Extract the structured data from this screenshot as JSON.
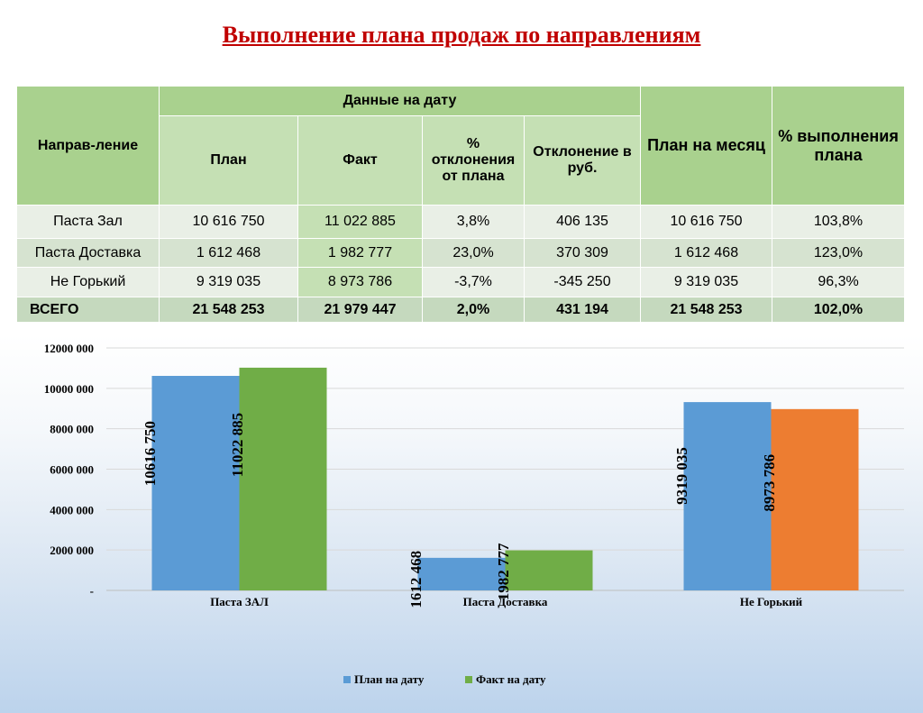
{
  "title": "Выполнение плана продаж по направлениям",
  "table": {
    "col_direction": "Направ-ление",
    "group_header": "Данные на дату",
    "col_plan": "План",
    "col_fact": "Факт",
    "col_pct_dev": "% отклонения от плана",
    "col_dev_rub": "Отклонение в руб.",
    "col_month_plan": "План на месяц",
    "col_pct_exec": "% выполнения плана",
    "rows": [
      {
        "name": "Паста Зал",
        "plan": "10 616 750",
        "fact": "11 022 885",
        "pct_dev": "3,8%",
        "dev_rub": "406 135",
        "month_plan": "10 616 750",
        "pct_exec": "103,8%"
      },
      {
        "name": "Паста Доставка",
        "plan": "1 612 468",
        "fact": "1 982 777",
        "pct_dev": "23,0%",
        "dev_rub": "370 309",
        "month_plan": "1 612 468",
        "pct_exec": "123,0%"
      },
      {
        "name": "Не Горький",
        "plan": "9 319 035",
        "fact": "8 973 786",
        "pct_dev": "-3,7%",
        "dev_rub": "-345 250",
        "month_plan": "9 319 035",
        "pct_exec": "96,3%"
      }
    ],
    "total": {
      "name": "ВСЕГО",
      "plan": "21 548 253",
      "fact": "21 979 447",
      "pct_dev": "2,0%",
      "dev_rub": "431 194",
      "month_plan": "21 548 253",
      "pct_exec": "102,0%"
    }
  },
  "chart_data": {
    "type": "bar",
    "categories": [
      "Паста  ЗАЛ",
      "Паста Доставка",
      "Не Горький"
    ],
    "series": [
      {
        "name": "План на дату",
        "values": [
          10616750,
          1612468,
          9319035
        ],
        "labels": [
          "10616 750",
          "1612 468",
          "9319 035"
        ],
        "colors": [
          "#5b9bd5",
          "#5b9bd5",
          "#5b9bd5"
        ]
      },
      {
        "name": "Факт на дату",
        "values": [
          11022885,
          1982777,
          8973786
        ],
        "labels": [
          "11022 885",
          "1982 777",
          "8973 786"
        ],
        "colors": [
          "#70ad47",
          "#70ad47",
          "#ed7d31"
        ]
      }
    ],
    "ylim": [
      0,
      12000000
    ],
    "yticks": [
      0,
      2000000,
      4000000,
      6000000,
      8000000,
      10000000,
      12000000
    ],
    "ytick_labels": [
      "-",
      "2000 000",
      "4000 000",
      "6000 000",
      "8000 000",
      "10000 000",
      "12000 000"
    ],
    "grid": true,
    "legend_position": "bottom",
    "legend_colors": [
      "#5b9bd5",
      "#70ad47"
    ]
  }
}
